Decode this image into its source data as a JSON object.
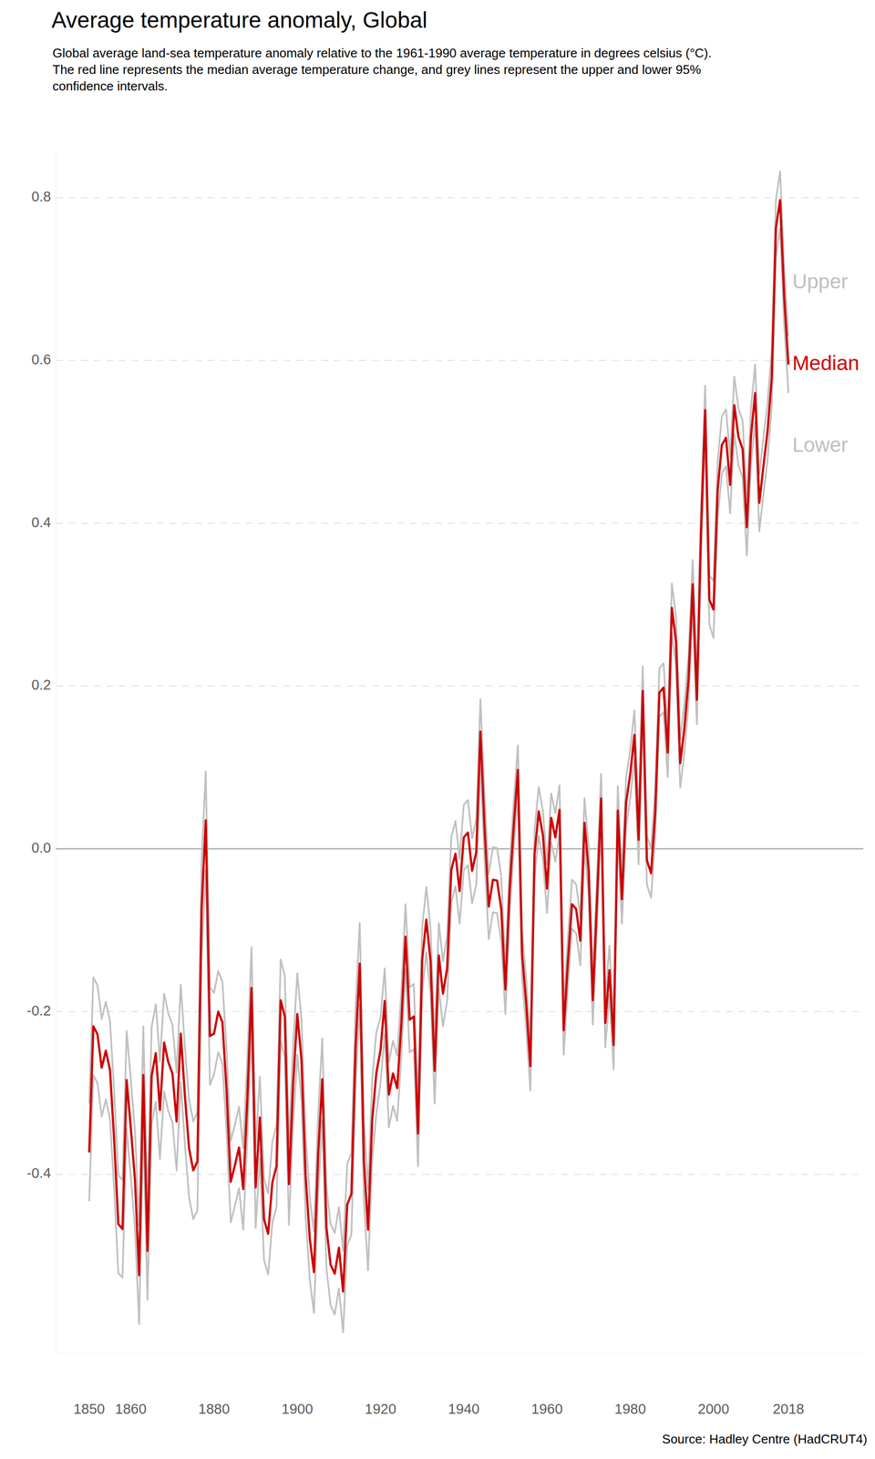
{
  "chart_data": {
    "type": "line",
    "title": "Average temperature anomaly, Global",
    "subtitle": [
      "Global average land-sea temperature anomaly relative to the 1961-1990 average temperature in degrees celsius (°C).",
      "The red line represents the median average temperature change, and grey lines represent the upper and lower 95%",
      "confidence intervals."
    ],
    "source": "Source: Hadley Centre (HadCRUT4)",
    "grid": true,
    "xlim": [
      1842,
      2036
    ],
    "ylim": [
      -0.62,
      0.86
    ],
    "xticks": [
      1850,
      1860,
      1880,
      1900,
      1920,
      1940,
      1960,
      1980,
      2000,
      2018
    ],
    "yticks": [
      -0.4,
      -0.2,
      {
        "value": 0,
        "label": "0.0"
      },
      0.2,
      0.4,
      0.6,
      0.8
    ],
    "x": [
      1850,
      1851,
      1852,
      1853,
      1854,
      1855,
      1856,
      1857,
      1858,
      1859,
      1860,
      1861,
      1862,
      1863,
      1864,
      1865,
      1866,
      1867,
      1868,
      1869,
      1870,
      1871,
      1872,
      1873,
      1874,
      1875,
      1876,
      1877,
      1878,
      1879,
      1880,
      1881,
      1882,
      1883,
      1884,
      1885,
      1886,
      1887,
      1888,
      1889,
      1890,
      1891,
      1892,
      1893,
      1894,
      1895,
      1896,
      1897,
      1898,
      1899,
      1900,
      1901,
      1902,
      1903,
      1904,
      1905,
      1906,
      1907,
      1908,
      1909,
      1910,
      1911,
      1912,
      1913,
      1914,
      1915,
      1916,
      1917,
      1918,
      1919,
      1920,
      1921,
      1922,
      1923,
      1924,
      1925,
      1926,
      1927,
      1928,
      1929,
      1930,
      1931,
      1932,
      1933,
      1934,
      1935,
      1936,
      1937,
      1938,
      1939,
      1940,
      1941,
      1942,
      1943,
      1944,
      1945,
      1946,
      1947,
      1948,
      1949,
      1950,
      1951,
      1952,
      1953,
      1954,
      1955,
      1956,
      1957,
      1958,
      1959,
      1960,
      1961,
      1962,
      1963,
      1964,
      1965,
      1966,
      1967,
      1968,
      1969,
      1970,
      1971,
      1972,
      1973,
      1974,
      1975,
      1976,
      1977,
      1978,
      1979,
      1980,
      1981,
      1982,
      1983,
      1984,
      1985,
      1986,
      1987,
      1988,
      1989,
      1990,
      1991,
      1992,
      1993,
      1994,
      1995,
      1996,
      1997,
      1998,
      1999,
      2000,
      2001,
      2002,
      2003,
      2004,
      2005,
      2006,
      2007,
      2008,
      2009,
      2010,
      2011,
      2012,
      2013,
      2014,
      2015,
      2016,
      2017,
      2018
    ],
    "series": [
      {
        "name": "Upper",
        "color": "#c0c0c0",
        "values": [
          -0.313,
          -0.158,
          -0.168,
          -0.209,
          -0.188,
          -0.212,
          -0.298,
          -0.401,
          -0.407,
          -0.224,
          -0.283,
          -0.347,
          -0.464,
          -0.218,
          -0.434,
          -0.219,
          -0.191,
          -0.261,
          -0.178,
          -0.202,
          -0.216,
          -0.275,
          -0.167,
          -0.244,
          -0.308,
          -0.335,
          -0.324,
          -0.015,
          0.095,
          -0.17,
          -0.177,
          -0.15,
          -0.163,
          -0.246,
          -0.359,
          -0.339,
          -0.317,
          -0.368,
          -0.257,
          -0.121,
          -0.366,
          -0.28,
          -0.405,
          -0.423,
          -0.36,
          -0.34,
          -0.136,
          -0.156,
          -0.362,
          -0.239,
          -0.153,
          -0.209,
          -0.352,
          -0.429,
          -0.47,
          -0.327,
          -0.233,
          -0.415,
          -0.461,
          -0.472,
          -0.44,
          -0.494,
          -0.387,
          -0.374,
          -0.194,
          -0.091,
          -0.333,
          -0.418,
          -0.283,
          -0.225,
          -0.207,
          -0.147,
          -0.262,
          -0.236,
          -0.254,
          -0.175,
          -0.068,
          -0.17,
          -0.166,
          -0.31,
          -0.097,
          -0.047,
          -0.097,
          -0.233,
          -0.091,
          -0.138,
          -0.107,
          0.014,
          0.034,
          -0.012,
          0.054,
          0.06,
          0.013,
          0.036,
          0.184,
          0.065,
          -0.031,
          0.002,
          0.001,
          -0.034,
          -0.143,
          -0.022,
          0.058,
          0.127,
          -0.099,
          -0.16,
          -0.237,
          0.023,
          0.076,
          0.047,
          -0.019,
          0.068,
          0.044,
          0.078,
          -0.193,
          -0.11,
          -0.038,
          -0.044,
          -0.083,
          0.062,
          0.003,
          -0.156,
          -0.035,
          0.092,
          -0.184,
          -0.119,
          -0.211,
          0.077,
          -0.032,
          0.087,
          0.122,
          0.17,
          0.041,
          0.224,
          0.016,
          0.0,
          0.075,
          0.222,
          0.228,
          0.148,
          0.326,
          0.284,
          0.135,
          0.178,
          0.238,
          0.355,
          0.213,
          0.42,
          0.569,
          0.336,
          0.329,
          0.476,
          0.531,
          0.54,
          0.482,
          0.58,
          0.541,
          0.526,
          0.43,
          0.541,
          0.595,
          0.46,
          0.505,
          0.549,
          0.614,
          0.798,
          0.832,
          0.712,
          0.63
        ]
      },
      {
        "name": "Median",
        "color": "#cc0000",
        "values": [
          -0.373,
          -0.218,
          -0.228,
          -0.269,
          -0.248,
          -0.272,
          -0.358,
          -0.461,
          -0.467,
          -0.284,
          -0.343,
          -0.407,
          -0.524,
          -0.278,
          -0.494,
          -0.279,
          -0.251,
          -0.321,
          -0.238,
          -0.262,
          -0.276,
          -0.335,
          -0.227,
          -0.304,
          -0.368,
          -0.395,
          -0.384,
          -0.075,
          0.035,
          -0.23,
          -0.227,
          -0.2,
          -0.213,
          -0.296,
          -0.409,
          -0.389,
          -0.367,
          -0.418,
          -0.307,
          -0.171,
          -0.416,
          -0.33,
          -0.455,
          -0.473,
          -0.41,
          -0.39,
          -0.186,
          -0.206,
          -0.412,
          -0.289,
          -0.203,
          -0.259,
          -0.402,
          -0.479,
          -0.52,
          -0.377,
          -0.283,
          -0.465,
          -0.511,
          -0.522,
          -0.49,
          -0.544,
          -0.437,
          -0.424,
          -0.244,
          -0.141,
          -0.383,
          -0.468,
          -0.333,
          -0.275,
          -0.247,
          -0.187,
          -0.302,
          -0.276,
          -0.294,
          -0.215,
          -0.108,
          -0.21,
          -0.206,
          -0.35,
          -0.137,
          -0.087,
          -0.137,
          -0.273,
          -0.131,
          -0.178,
          -0.147,
          -0.026,
          -0.006,
          -0.052,
          0.014,
          0.02,
          -0.027,
          -0.004,
          0.144,
          0.025,
          -0.071,
          -0.038,
          -0.039,
          -0.074,
          -0.173,
          -0.052,
          0.028,
          0.097,
          -0.129,
          -0.19,
          -0.267,
          -0.007,
          0.046,
          0.017,
          -0.049,
          0.038,
          0.014,
          0.048,
          -0.223,
          -0.14,
          -0.068,
          -0.074,
          -0.113,
          0.032,
          -0.027,
          -0.186,
          -0.065,
          0.062,
          -0.214,
          -0.149,
          -0.241,
          0.047,
          -0.062,
          0.057,
          0.092,
          0.14,
          0.011,
          0.194,
          -0.014,
          -0.03,
          0.045,
          0.192,
          0.198,
          0.118,
          0.296,
          0.254,
          0.105,
          0.148,
          0.208,
          0.325,
          0.183,
          0.39,
          0.539,
          0.306,
          0.294,
          0.441,
          0.496,
          0.505,
          0.447,
          0.545,
          0.506,
          0.491,
          0.395,
          0.506,
          0.56,
          0.425,
          0.47,
          0.514,
          0.579,
          0.763,
          0.797,
          0.677,
          0.595
        ]
      },
      {
        "name": "Lower",
        "color": "#c0c0c0",
        "values": [
          -0.433,
          -0.278,
          -0.288,
          -0.329,
          -0.308,
          -0.332,
          -0.418,
          -0.521,
          -0.527,
          -0.344,
          -0.403,
          -0.467,
          -0.584,
          -0.338,
          -0.554,
          -0.339,
          -0.311,
          -0.381,
          -0.298,
          -0.322,
          -0.336,
          -0.395,
          -0.287,
          -0.364,
          -0.428,
          -0.455,
          -0.444,
          -0.135,
          -0.025,
          -0.29,
          -0.277,
          -0.25,
          -0.263,
          -0.346,
          -0.459,
          -0.439,
          -0.417,
          -0.468,
          -0.357,
          -0.221,
          -0.466,
          -0.38,
          -0.505,
          -0.523,
          -0.46,
          -0.44,
          -0.236,
          -0.256,
          -0.462,
          -0.339,
          -0.253,
          -0.309,
          -0.452,
          -0.529,
          -0.57,
          -0.427,
          -0.333,
          -0.515,
          -0.561,
          -0.572,
          -0.54,
          -0.594,
          -0.487,
          -0.474,
          -0.294,
          -0.191,
          -0.433,
          -0.518,
          -0.383,
          -0.325,
          -0.287,
          -0.227,
          -0.342,
          -0.316,
          -0.334,
          -0.255,
          -0.148,
          -0.25,
          -0.246,
          -0.39,
          -0.177,
          -0.127,
          -0.177,
          -0.313,
          -0.171,
          -0.218,
          -0.187,
          -0.066,
          -0.046,
          -0.092,
          -0.026,
          -0.02,
          -0.067,
          -0.044,
          0.104,
          -0.015,
          -0.111,
          -0.078,
          -0.079,
          -0.114,
          -0.203,
          -0.082,
          -0.002,
          0.067,
          -0.159,
          -0.22,
          -0.297,
          -0.037,
          0.016,
          -0.013,
          -0.079,
          0.008,
          -0.016,
          0.018,
          -0.253,
          -0.17,
          -0.098,
          -0.104,
          -0.143,
          0.002,
          -0.057,
          -0.216,
          -0.095,
          0.032,
          -0.244,
          -0.179,
          -0.271,
          0.017,
          -0.092,
          0.027,
          0.062,
          0.11,
          -0.019,
          0.164,
          -0.044,
          -0.06,
          0.015,
          0.162,
          0.168,
          0.088,
          0.266,
          0.224,
          0.075,
          0.118,
          0.178,
          0.295,
          0.153,
          0.36,
          0.509,
          0.276,
          0.259,
          0.406,
          0.461,
          0.47,
          0.412,
          0.51,
          0.471,
          0.456,
          0.36,
          0.471,
          0.525,
          0.39,
          0.435,
          0.479,
          0.544,
          0.728,
          0.762,
          0.642,
          0.56
        ]
      }
    ]
  }
}
